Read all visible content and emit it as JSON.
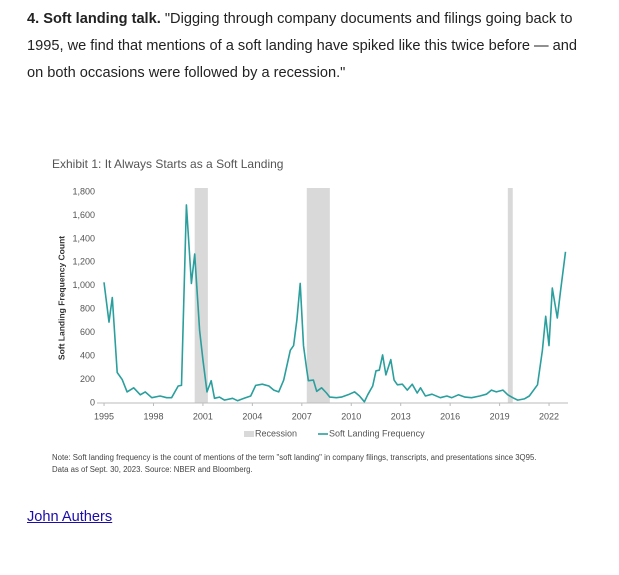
{
  "article": {
    "lead": "4. Soft landing talk.",
    "quote": "\"Digging through company documents and filings going back to 1995, we find that mentions of a soft landing have spiked like this twice before — and on both occasions were followed by a recession.\"",
    "author": "John Authers"
  },
  "chart_data": {
    "type": "line",
    "title": "Exhibit 1: It Always Starts as a Soft Landing",
    "ylabel": "Soft Landing Frequency Count",
    "xlim": [
      1994.5,
      2024
    ],
    "xticks": [
      1995,
      1998,
      2001,
      2004,
      2007,
      2010,
      2013,
      2016,
      2019,
      2022
    ],
    "ylim": [
      0,
      1800
    ],
    "yticks": [
      0,
      200,
      400,
      600,
      800,
      {
        "value": 1000,
        "label": "1,000"
      },
      {
        "value": 1200,
        "label": "1,200"
      },
      {
        "value": 1400,
        "label": "1,400"
      },
      {
        "value": 1600,
        "label": "1,600"
      },
      {
        "value": 1800,
        "label": "1,800"
      }
    ],
    "recession": {
      "name": "Recession",
      "color": "#d9d9d9",
      "spans": [
        [
          2000.5,
          2001.3
        ],
        [
          2007.3,
          2008.7
        ],
        [
          2019.5,
          2019.8
        ]
      ]
    },
    "series": [
      {
        "name": "Soft Landing Frequency",
        "color": "#2a9f9d",
        "x": [
          1995.0,
          1995.3,
          1995.5,
          1995.8,
          1996.1,
          1996.4,
          1996.8,
          1997.2,
          1997.5,
          1997.9,
          1998.4,
          1998.8,
          1999.1,
          1999.5,
          1999.7,
          2000.0,
          2000.3,
          2000.5,
          2000.8,
          2001.0,
          2001.25,
          2001.5,
          2001.7,
          2002.0,
          2002.3,
          2002.8,
          2003.1,
          2003.5,
          2003.9,
          2004.2,
          2004.6,
          2005.0,
          2005.3,
          2005.6,
          2005.9,
          2006.3,
          2006.5,
          2006.7,
          2006.9,
          2007.1,
          2007.3,
          2007.4,
          2007.7,
          2007.9,
          2008.2,
          2008.5,
          2008.7,
          2009.1,
          2009.4,
          2009.8,
          2010.2,
          2010.5,
          2010.8,
          2011.0,
          2011.3,
          2011.5,
          2011.7,
          2011.9,
          2012.1,
          2012.4,
          2012.6,
          2012.8,
          2013.1,
          2013.4,
          2013.7,
          2014.0,
          2014.2,
          2014.5,
          2014.9,
          2015.4,
          2015.8,
          2016.1,
          2016.5,
          2016.9,
          2017.3,
          2017.8,
          2018.2,
          2018.5,
          2018.8,
          2019.2,
          2019.5,
          2019.8,
          2020.1,
          2020.5,
          2020.8,
          2021.3,
          2021.6,
          2021.8,
          2022.0,
          2022.2,
          2022.5,
          2022.7,
          2023.0
        ],
        "values": [
          1030,
          690,
          900,
          260,
          200,
          95,
          130,
          70,
          95,
          45,
          60,
          45,
          45,
          145,
          150,
          1690,
          1020,
          1270,
          620,
          370,
          95,
          190,
          40,
          50,
          25,
          40,
          20,
          40,
          60,
          150,
          160,
          145,
          110,
          95,
          195,
          450,
          490,
          710,
          1020,
          490,
          280,
          190,
          195,
          100,
          130,
          85,
          50,
          45,
          50,
          70,
          95,
          60,
          10,
          70,
          145,
          275,
          280,
          410,
          240,
          370,
          195,
          155,
          160,
          110,
          160,
          85,
          130,
          60,
          75,
          45,
          60,
          45,
          70,
          50,
          45,
          60,
          75,
          110,
          95,
          110,
          70,
          45,
          25,
          35,
          60,
          155,
          450,
          740,
          490,
          980,
          725,
          960,
          1290
        ]
      }
    ],
    "note": [
      "Note: Soft landing frequency is the count of mentions of the term \"soft landing\" in company filings, transcripts, and presentations since 3Q95.",
      "Data as of Sept. 30, 2023. Source: NBER and Bloomberg."
    ]
  }
}
